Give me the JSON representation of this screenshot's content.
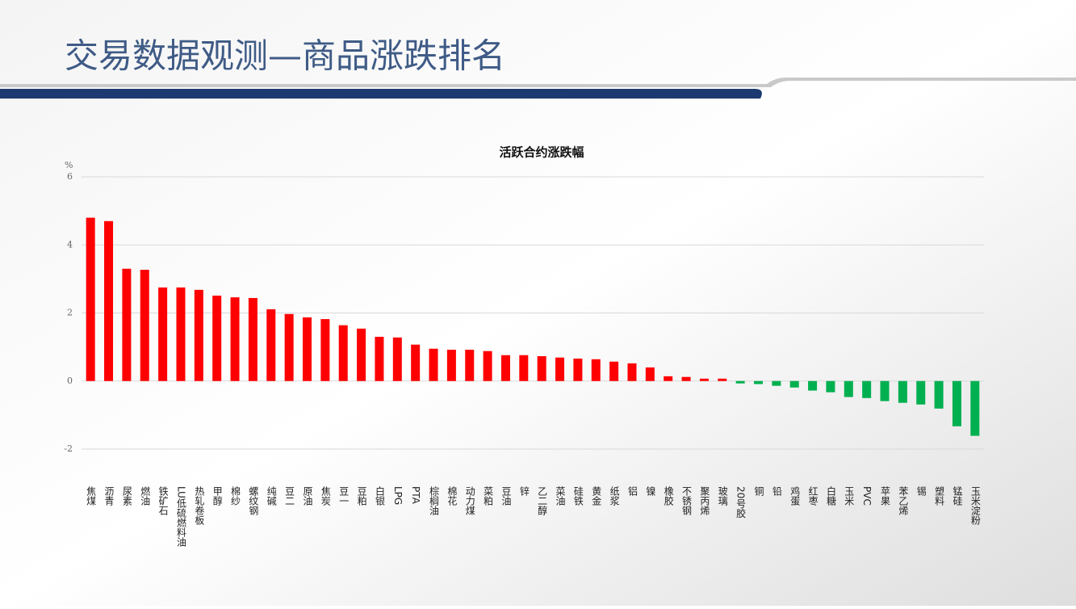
{
  "header": {
    "title": "交易数据观测—商品涨跌排名"
  },
  "chart_data": {
    "type": "bar",
    "title": "活跃合约涨跌幅",
    "y_unit": "%",
    "categories": [
      "焦煤",
      "沥青",
      "尿素",
      "燃油",
      "铁矿石",
      "LU低硫燃料油",
      "热轧卷板",
      "甲醇",
      "棉纱",
      "螺纹钢",
      "纯碱",
      "豆二",
      "原油",
      "焦炭",
      "豆一",
      "豆粕",
      "白银",
      "LPG",
      "PTA",
      "棕榈油",
      "棉花",
      "动力煤",
      "菜粕",
      "豆油",
      "锌",
      "乙二醇",
      "菜油",
      "硅铁",
      "黄金",
      "纸浆",
      "铝",
      "镍",
      "橡胶",
      "不锈钢",
      "聚丙烯",
      "玻璃",
      "20号胶",
      "铜",
      "铅",
      "鸡蛋",
      "红枣",
      "白糖",
      "玉米",
      "PVC",
      "苹果",
      "苯乙烯",
      "锡",
      "塑料",
      "锰硅",
      "玉米淀粉"
    ],
    "values": [
      4.8,
      4.7,
      3.3,
      3.27,
      2.75,
      2.75,
      2.68,
      2.51,
      2.46,
      2.44,
      2.11,
      1.97,
      1.87,
      1.82,
      1.64,
      1.54,
      1.3,
      1.28,
      1.07,
      0.95,
      0.92,
      0.92,
      0.88,
      0.76,
      0.76,
      0.73,
      0.69,
      0.66,
      0.64,
      0.57,
      0.52,
      0.4,
      0.14,
      0.12,
      0.07,
      0.07,
      -0.07,
      -0.09,
      -0.14,
      -0.19,
      -0.28,
      -0.33,
      -0.47,
      -0.5,
      -0.59,
      -0.64,
      -0.69,
      -0.81,
      -1.33,
      -1.61
    ],
    "positive_color": "#ff0000",
    "negative_color": "#00b050",
    "ylim": [
      -2,
      6
    ],
    "yticks": [
      -2,
      0,
      2,
      4,
      6
    ],
    "grid": true
  }
}
